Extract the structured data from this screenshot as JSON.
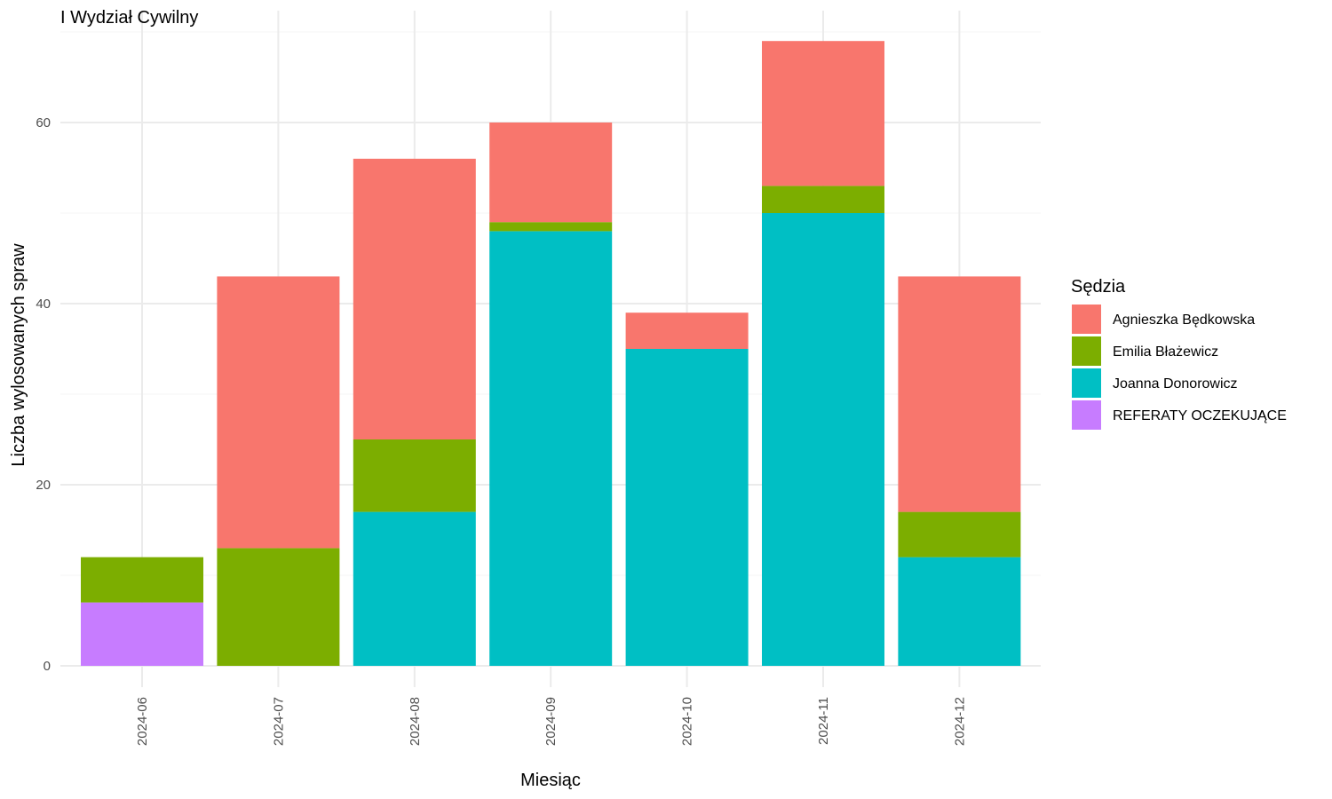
{
  "chart_data": {
    "type": "bar",
    "stacked": true,
    "title": "I Wydział Cywilny",
    "xlabel": "Miesiąc",
    "ylabel": "Liczba wylosowanych spraw",
    "categories": [
      "2024-06",
      "2024-07",
      "2024-08",
      "2024-09",
      "2024-10",
      "2024-11",
      "2024-12"
    ],
    "ylim": [
      0,
      70
    ],
    "yticks": [
      0,
      20,
      40,
      60
    ],
    "grid": true,
    "legend": {
      "title": "Sędzia",
      "position": "right"
    },
    "series": [
      {
        "name": "REFERATY OCZEKUJĄCE",
        "color": "#C77CFF",
        "values": [
          7,
          0,
          0,
          0,
          0,
          0,
          0
        ]
      },
      {
        "name": "Joanna Donorowicz",
        "color": "#00BFC4",
        "values": [
          0,
          0,
          17,
          48,
          35,
          50,
          12
        ]
      },
      {
        "name": "Emilia Błażewicz",
        "color": "#7CAE00",
        "values": [
          5,
          13,
          8,
          1,
          0,
          3,
          5
        ]
      },
      {
        "name": "Agnieszka Będkowska",
        "color": "#F8766D",
        "values": [
          0,
          30,
          31,
          11,
          4,
          16,
          26
        ]
      }
    ],
    "legend_order": [
      "Agnieszka Będkowska",
      "Emilia Błażewicz",
      "Joanna Donorowicz",
      "REFERATY OCZEKUJĄCE"
    ]
  }
}
